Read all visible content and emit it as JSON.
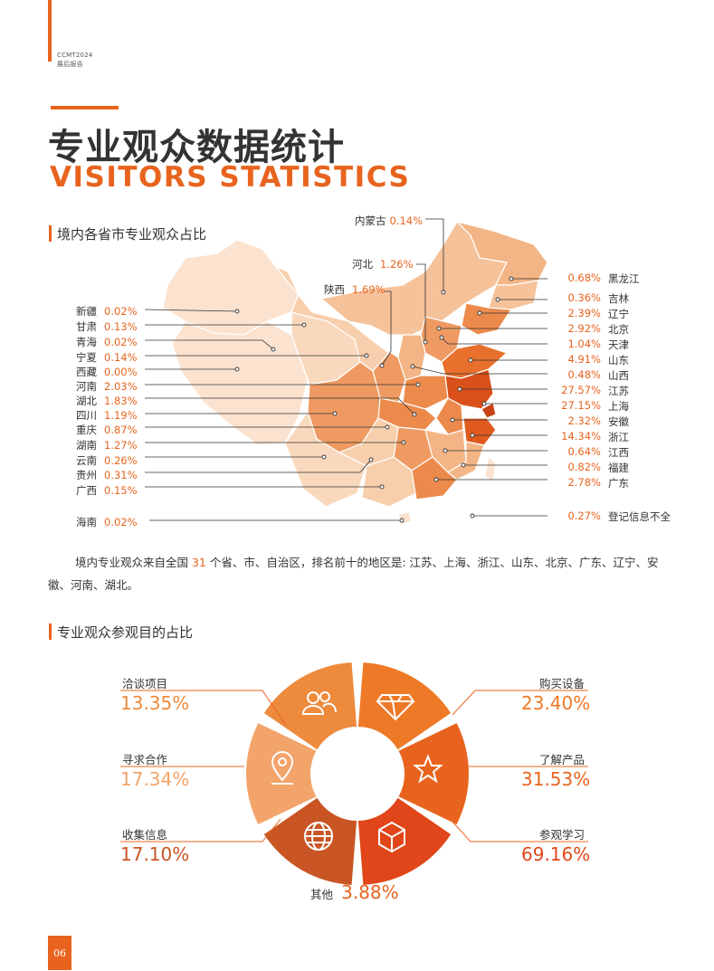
{
  "header": {
    "line1": "CCMT2024",
    "line2": "展后报告"
  },
  "title": {
    "cn": "专业观众数据统计",
    "en": "VISITORS STATISTICS"
  },
  "section1": {
    "title": "境内各省市专业观众占比"
  },
  "provinces_left": [
    {
      "name": "新疆",
      "value": "0.02%"
    },
    {
      "name": "甘肃",
      "value": "0.13%"
    },
    {
      "name": "青海",
      "value": "0.02%"
    },
    {
      "name": "宁夏",
      "value": "0.14%"
    },
    {
      "name": "西藏",
      "value": "0.00%"
    },
    {
      "name": "河南",
      "value": "2.03%"
    },
    {
      "name": "湖北",
      "value": "1.83%"
    },
    {
      "name": "四川",
      "value": "1.19%"
    },
    {
      "name": "重庆",
      "value": "0.87%"
    },
    {
      "name": "湖南",
      "value": "1.27%"
    },
    {
      "name": "云南",
      "value": "0.26%"
    },
    {
      "name": "贵州",
      "value": "0.31%"
    },
    {
      "name": "广西",
      "value": "0.15%"
    }
  ],
  "hainan": {
    "name": "海南",
    "value": "0.02%"
  },
  "provinces_top": [
    {
      "name": "内蒙古",
      "value": "0.14%"
    },
    {
      "name": "河北",
      "value": "1.26%"
    },
    {
      "name": "陕西",
      "value": "1.69%"
    }
  ],
  "provinces_right": [
    {
      "name": "黑龙江",
      "value": "0.68%"
    },
    {
      "name": "吉林",
      "value": "0.36%"
    },
    {
      "name": "辽宁",
      "value": "2.39%"
    },
    {
      "name": "北京",
      "value": "2.92%"
    },
    {
      "name": "天津",
      "value": "1.04%"
    },
    {
      "name": "山东",
      "value": "4.91%"
    },
    {
      "name": "山西",
      "value": "0.48%"
    },
    {
      "name": "江苏",
      "value": "27.57%"
    },
    {
      "name": "上海",
      "value": "27.15%"
    },
    {
      "name": "安徽",
      "value": "2.32%"
    },
    {
      "name": "浙江",
      "value": "14.34%"
    },
    {
      "name": "江西",
      "value": "0.64%"
    },
    {
      "name": "福建",
      "value": "0.82%"
    },
    {
      "name": "广东",
      "value": "2.78%"
    }
  ],
  "unregistered": {
    "name": "登记信息不全",
    "value": "0.27%"
  },
  "paragraph": {
    "pre": "境内专业观众来自全国 ",
    "num": "31",
    "post": " 个省、市、自治区，排名前十的地区是: 江苏、上海、浙江、山东、北京、广东、辽宁、安徽、河南、湖北。"
  },
  "section2": {
    "title": "专业观众参观目的占比"
  },
  "purposes": [
    {
      "label": "洽谈项目",
      "value": "13.35%",
      "icon": "people-icon",
      "color": "#ee8a3c"
    },
    {
      "label": "购买设备",
      "value": "23.40%",
      "icon": "diamond-icon",
      "color": "#ee7a28"
    },
    {
      "label": "了解产品",
      "value": "31.53%",
      "icon": "star-icon",
      "color": "#e8641e"
    },
    {
      "label": "参观学习",
      "value": "69.16%",
      "icon": "cube-icon",
      "color": "#e0461a"
    },
    {
      "label": "收集信息",
      "value": "17.10%",
      "icon": "globe-icon",
      "color": "#c95524"
    },
    {
      "label": "寻求合作",
      "value": "17.34%",
      "icon": "location-pin-icon",
      "color": "#f2a46a"
    }
  ],
  "other": {
    "label": "其他",
    "value": "3.88%"
  },
  "page_number": "06",
  "colors": {
    "accent": "#e8641e",
    "light": "#fbe3d0"
  }
}
